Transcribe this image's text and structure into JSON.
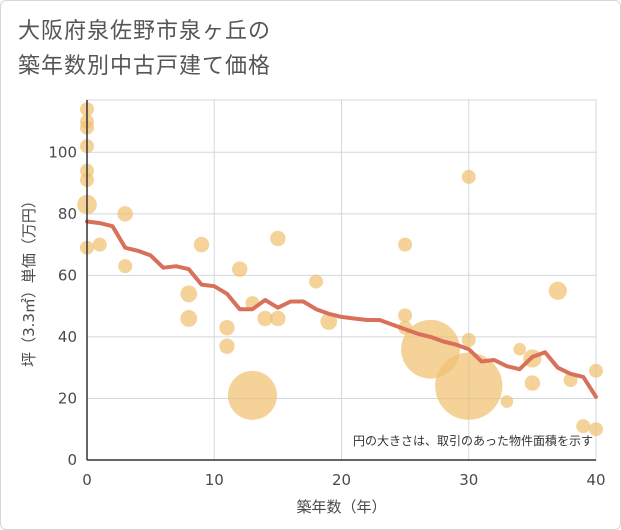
{
  "title_lines": [
    "大阪府泉佐野市泉ヶ丘の",
    "築年数別中古戸建て価格"
  ],
  "chart_data": {
    "type": "scatter",
    "title": "大阪府泉佐野市泉ヶ丘の築年数別中古戸建て価格",
    "xlabel": "築年数（年）",
    "ylabel": "坪（3.3㎡）単価（万円）",
    "xlim": [
      0,
      40
    ],
    "ylim": [
      0,
      117
    ],
    "xticks": [
      0,
      10,
      20,
      30,
      40
    ],
    "yticks": [
      0,
      20,
      40,
      60,
      80,
      100
    ],
    "grid": true,
    "annotation": "円の大きさは、取引のあった物件面積を示す",
    "bubble_color": "#f0c070",
    "line_color": "#d9705a",
    "points": [
      {
        "x": 0,
        "y": 114,
        "s": 1
      },
      {
        "x": 0,
        "y": 110,
        "s": 1
      },
      {
        "x": 0,
        "y": 108,
        "s": 1
      },
      {
        "x": 0,
        "y": 102,
        "s": 1
      },
      {
        "x": 0,
        "y": 94,
        "s": 1
      },
      {
        "x": 0,
        "y": 91,
        "s": 1
      },
      {
        "x": 0,
        "y": 83,
        "s": 1.4
      },
      {
        "x": 0,
        "y": 69,
        "s": 1
      },
      {
        "x": 1,
        "y": 70,
        "s": 1
      },
      {
        "x": 3,
        "y": 80,
        "s": 1.1
      },
      {
        "x": 3,
        "y": 63,
        "s": 1
      },
      {
        "x": 8,
        "y": 54,
        "s": 1.2
      },
      {
        "x": 8,
        "y": 46,
        "s": 1.2
      },
      {
        "x": 9,
        "y": 70,
        "s": 1.1
      },
      {
        "x": 11,
        "y": 43,
        "s": 1.1
      },
      {
        "x": 11,
        "y": 37,
        "s": 1.1
      },
      {
        "x": 12,
        "y": 62,
        "s": 1.1
      },
      {
        "x": 13,
        "y": 51,
        "s": 1
      },
      {
        "x": 13,
        "y": 21,
        "s": 3.5
      },
      {
        "x": 14,
        "y": 46,
        "s": 1.1
      },
      {
        "x": 15,
        "y": 72,
        "s": 1.1
      },
      {
        "x": 15,
        "y": 46,
        "s": 1.1
      },
      {
        "x": 18,
        "y": 58,
        "s": 1
      },
      {
        "x": 19,
        "y": 45,
        "s": 1.2
      },
      {
        "x": 25,
        "y": 70,
        "s": 1
      },
      {
        "x": 25,
        "y": 47,
        "s": 1
      },
      {
        "x": 25,
        "y": 43,
        "s": 1
      },
      {
        "x": 27,
        "y": 36,
        "s": 4.2
      },
      {
        "x": 30,
        "y": 92,
        "s": 1
      },
      {
        "x": 30,
        "y": 39,
        "s": 1
      },
      {
        "x": 30,
        "y": 24,
        "s": 4.8
      },
      {
        "x": 33,
        "y": 19,
        "s": 0.9
      },
      {
        "x": 34,
        "y": 36,
        "s": 0.9
      },
      {
        "x": 35,
        "y": 33,
        "s": 1.3
      },
      {
        "x": 35,
        "y": 25,
        "s": 1.1
      },
      {
        "x": 37,
        "y": 55,
        "s": 1.3
      },
      {
        "x": 38,
        "y": 26,
        "s": 1
      },
      {
        "x": 39,
        "y": 11,
        "s": 1
      },
      {
        "x": 40,
        "y": 29,
        "s": 1
      },
      {
        "x": 40,
        "y": 10,
        "s": 1
      }
    ],
    "trend": {
      "x": [
        0,
        1,
        2,
        3,
        4,
        5,
        6,
        7,
        8,
        9,
        10,
        11,
        12,
        13,
        14,
        15,
        16,
        17,
        18,
        19,
        20,
        21,
        22,
        23,
        24,
        25,
        26,
        27,
        28,
        29,
        30,
        31,
        32,
        33,
        34,
        35,
        36,
        37,
        38,
        39,
        40
      ],
      "y": [
        77.5,
        77,
        76,
        69,
        68,
        66.5,
        62.5,
        63,
        62,
        57,
        56.5,
        54,
        49,
        49,
        52,
        49.5,
        51.5,
        51.5,
        49,
        47.5,
        46.5,
        46,
        45.5,
        45.5,
        44,
        42.5,
        41,
        40,
        38.5,
        37.5,
        36,
        32,
        32.5,
        30.5,
        29.5,
        33.5,
        35,
        30,
        28,
        27,
        20.5
      ]
    }
  }
}
